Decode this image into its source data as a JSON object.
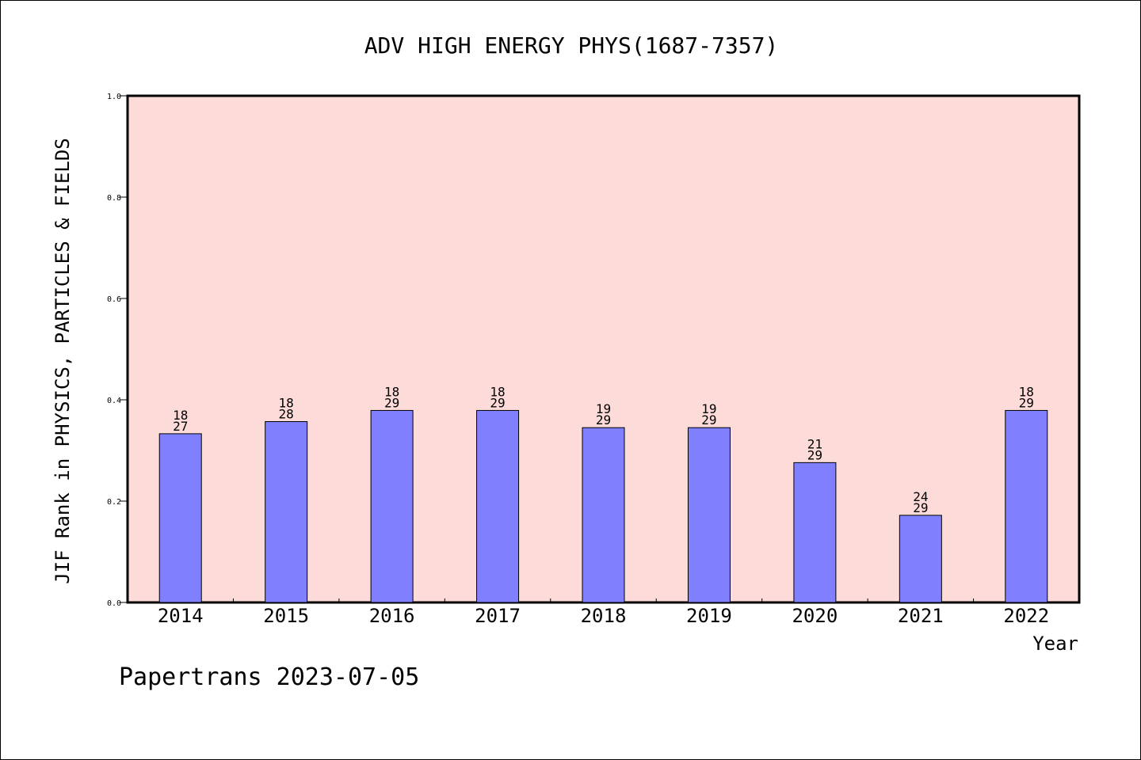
{
  "chart_data": {
    "type": "bar",
    "title": "ADV HIGH ENERGY PHYS(1687-7357)",
    "xlabel": "Year",
    "ylabel": "JIF Rank in PHYSICS, PARTICLES & FIELDS",
    "categories": [
      "2014",
      "2015",
      "2016",
      "2017",
      "2018",
      "2019",
      "2020",
      "2021",
      "2022"
    ],
    "series": [
      {
        "values": [
          0.333,
          0.357,
          0.379,
          0.379,
          0.345,
          0.345,
          0.276,
          0.172,
          0.379
        ],
        "rank": [
          "18",
          "18",
          "18",
          "18",
          "19",
          "19",
          "21",
          "24",
          "18"
        ],
        "total": [
          "27",
          "28",
          "29",
          "29",
          "29",
          "29",
          "29",
          "29",
          "29"
        ]
      }
    ],
    "ylim": [
      0,
      1.0
    ],
    "yticks": [
      "0.0",
      "0.2",
      "0.4",
      "0.6",
      "0.8",
      "1.0"
    ],
    "grid": false,
    "colors": {
      "plot_background": "#fddbd8",
      "bar_fill": "#8080ff",
      "bar_stroke": "#000000",
      "axis": "#000000"
    }
  },
  "footer": {
    "text": "Papertrans 2023-07-05"
  }
}
